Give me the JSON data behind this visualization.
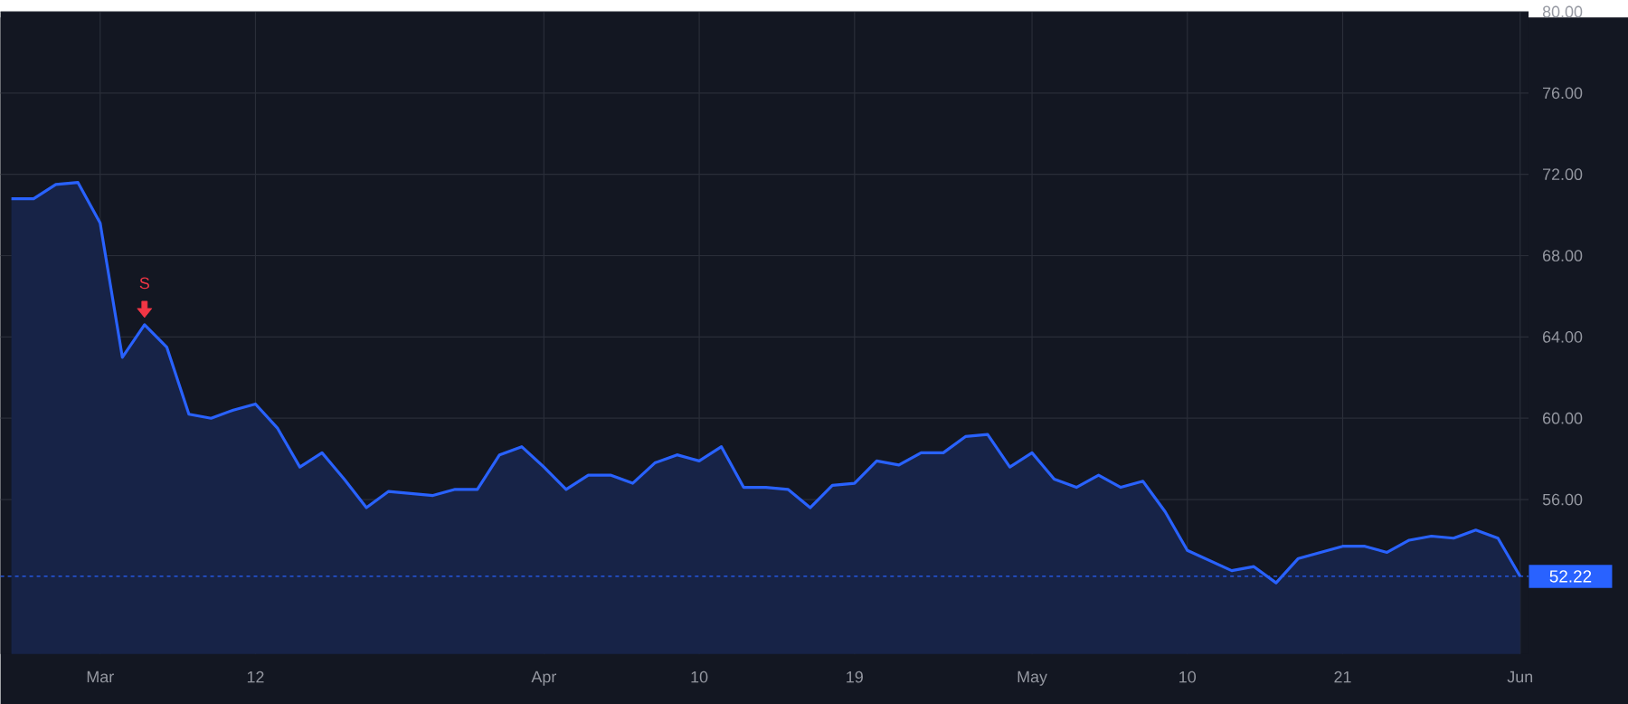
{
  "chart_data": {
    "type": "area",
    "categories": [
      null,
      null,
      null,
      null,
      "Mar",
      null,
      null,
      null,
      null,
      null,
      null,
      "12",
      null,
      null,
      null,
      null,
      null,
      null,
      null,
      null,
      null,
      null,
      null,
      null,
      "Apr",
      null,
      null,
      null,
      null,
      null,
      null,
      "10",
      null,
      null,
      null,
      null,
      null,
      null,
      "19",
      null,
      null,
      null,
      null,
      null,
      null,
      null,
      "May",
      null,
      null,
      null,
      null,
      null,
      null,
      "10",
      null,
      null,
      null,
      null,
      null,
      null,
      "21",
      null,
      null,
      null,
      null,
      null,
      null,
      null,
      "Jun"
    ],
    "series": [
      {
        "color": "#2962ff",
        "values": [
          70.8,
          70.8,
          71.5,
          71.6,
          69.6,
          63.0,
          64.6,
          63.5,
          60.2,
          60.0,
          60.4,
          60.7,
          59.5,
          57.6,
          58.3,
          57.0,
          55.6,
          56.4,
          56.3,
          56.2,
          56.5,
          56.5,
          58.2,
          58.6,
          57.6,
          56.5,
          57.2,
          57.2,
          56.8,
          57.8,
          58.2,
          57.9,
          58.6,
          56.6,
          56.6,
          56.5,
          55.6,
          56.7,
          56.8,
          57.9,
          57.7,
          58.3,
          58.3,
          59.1,
          59.2,
          57.6,
          58.3,
          57.0,
          56.6,
          57.2,
          56.6,
          56.9,
          55.4,
          53.5,
          53.0,
          52.5,
          52.7,
          51.9,
          53.1,
          53.4,
          53.7,
          53.7,
          53.4,
          54.0,
          54.2,
          54.1,
          54.5,
          54.1,
          52.22
        ]
      }
    ],
    "ylim": [
      48.4,
      80
    ],
    "yticks": [
      {
        "value": 56,
        "label": "56.00"
      },
      {
        "value": 60,
        "label": "60.00"
      },
      {
        "value": 64,
        "label": "64.00"
      },
      {
        "value": 68,
        "label": "68.00"
      },
      {
        "value": 72,
        "label": "72.00"
      },
      {
        "value": 76,
        "label": "76.00"
      },
      {
        "value": 80,
        "label": "80.00"
      }
    ],
    "grid": true,
    "ref_lines": [
      {
        "axis": "y",
        "value": 52.22,
        "label": "52.22",
        "color": "#2962ff",
        "line_style": "dashed"
      }
    ],
    "annotations": [
      {
        "text": "S",
        "y": 64.6
      }
    ]
  }
}
